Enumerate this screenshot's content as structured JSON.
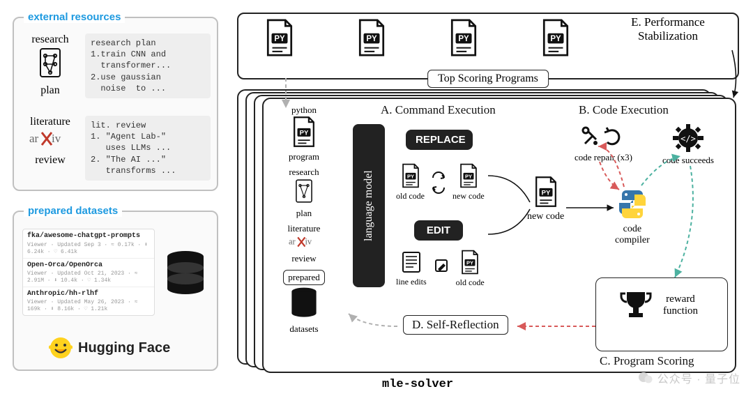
{
  "colors": {
    "blue": "#1e9ae0",
    "panel_border": "#c0c0c0",
    "black": "#111111",
    "gray_bg": "#eeeeee",
    "dark": "#222222",
    "red_dash": "#d85a5a",
    "teal_dash": "#4cb1a0",
    "gray_dash": "#b0b0b0"
  },
  "left": {
    "external_title": "external resources",
    "prepared_title": "prepared datasets",
    "research_top": "research",
    "research_bottom": "plan",
    "lit_top": "literature",
    "lit_bottom": "review",
    "research_code": "research plan\n1.train CNN and\n  transformer...\n2.use gaussian\n  noise  to ...",
    "lit_code": "lit. review\n1. \"Agent Lab-\"\n   uses LLMs ...\n2. \"The AI ...\"\n   transforms ...",
    "datasets": [
      {
        "name": "fka/awesome-chatgpt-prompts",
        "meta": "Viewer · Updated Sep 3 · ≈ 0.17k · ⬇ 6.24k · ♡ 6.41k"
      },
      {
        "name": "Open-Orca/OpenOrca",
        "meta": "Viewer · Updated Oct 21, 2023 · ≈ 2.91M · ⬇ 10.4k · ♡ 1.34k"
      },
      {
        "name": "Anthropic/hh-rlhf",
        "meta": "Viewer · Updated May 26, 2023 · ≈ 169k · ⬇ 8.16k · ♡ 1.21k"
      }
    ],
    "hf_label": "Hugging Face"
  },
  "right": {
    "top_label": "Top Scoring Programs",
    "title_A": "A. Command Execution",
    "title_B": "B. Code Execution",
    "title_C": "C. Program Scoring",
    "title_D": "D. Self-Reflection",
    "title_E": "E. Performance\nStabilization",
    "lang_model": "language model",
    "replace": "REPLACE",
    "edit": "EDIT",
    "old_code": "old code",
    "new_code": "new code",
    "line_edits": "line edits",
    "python": "python",
    "program": "program",
    "research": "research",
    "plan": "plan",
    "literature": "literature",
    "review": "review",
    "prepared": "prepared",
    "datasets": "datasets",
    "code_repair": "code repair (x3)",
    "code_succeeds": "code succeeds",
    "code_compiler": "code\ncompiler",
    "reward_fn": "reward\nfunction",
    "mle_solver": "mle-solver"
  },
  "watermark": "公众号 · 量子位"
}
